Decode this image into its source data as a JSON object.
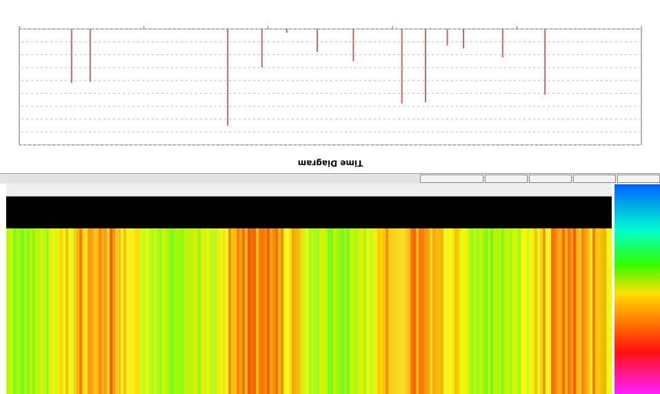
{
  "chart_data": {
    "type": "stem",
    "title": "Time Diagram",
    "x": [
      15.5,
      22.3,
      28.6,
      31.2,
      34.7,
      38.5,
      46.3,
      52.1,
      57.0,
      61.0,
      66.5,
      88.6,
      91.6
    ],
    "values": [
      5.1,
      2.2,
      1.5,
      1.3,
      5.7,
      5.8,
      2.5,
      1.8,
      0.3,
      3.0,
      7.5,
      4.1,
      4.2
    ],
    "color": "#c0686a",
    "xlim": [
      0,
      100
    ],
    "xticks": [
      0,
      20,
      40,
      60,
      80,
      100
    ],
    "ylim": [
      0,
      9
    ],
    "yticks": [
      0,
      1,
      2,
      3,
      4,
      5,
      6,
      7,
      8,
      9
    ],
    "grid": true
  }
}
